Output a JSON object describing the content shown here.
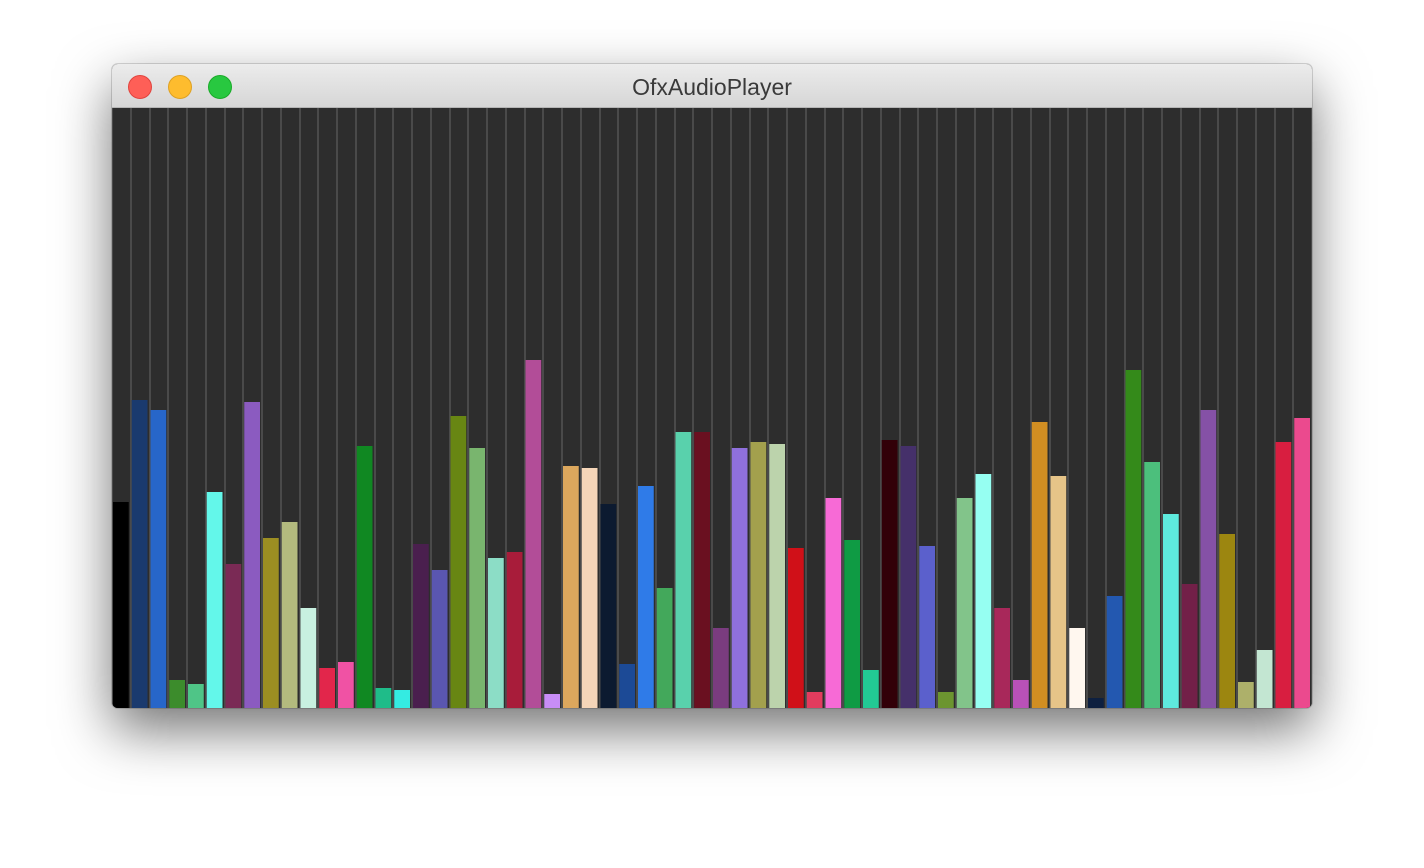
{
  "window": {
    "title": "OfxAudioPlayer"
  },
  "titlebar": {
    "close_icon": "close-icon",
    "minimize_icon": "minimize-icon",
    "zoom_icon": "zoom-icon",
    "colors": {
      "close": "#fe5f57",
      "minimize": "#febc2e",
      "zoom": "#28c840"
    }
  },
  "visualizer": {
    "background": "#2d2d2d",
    "grid_line_color": "#4a4a4a",
    "max_level": 600,
    "bars": [
      {
        "level": 206,
        "color": "#000000"
      },
      {
        "level": 308,
        "color": "#1a3a6e"
      },
      {
        "level": 298,
        "color": "#2766c9"
      },
      {
        "level": 28,
        "color": "#3c8c2c"
      },
      {
        "level": 24,
        "color": "#4fc587"
      },
      {
        "level": 216,
        "color": "#63f7ea"
      },
      {
        "level": 144,
        "color": "#7a2a55"
      },
      {
        "level": 306,
        "color": "#8b5bc0"
      },
      {
        "level": 170,
        "color": "#9c8e22"
      },
      {
        "level": 186,
        "color": "#b3ba7e"
      },
      {
        "level": 100,
        "color": "#c8f0e0"
      },
      {
        "level": 40,
        "color": "#e2264b"
      },
      {
        "level": 46,
        "color": "#f052a4"
      },
      {
        "level": 262,
        "color": "#108822"
      },
      {
        "level": 20,
        "color": "#1fbc89"
      },
      {
        "level": 18,
        "color": "#34ebe2"
      },
      {
        "level": 164,
        "color": "#4a1f4e"
      },
      {
        "level": 138,
        "color": "#5a56b0"
      },
      {
        "level": 292,
        "color": "#688613"
      },
      {
        "level": 260,
        "color": "#79b56e"
      },
      {
        "level": 150,
        "color": "#8cddc6"
      },
      {
        "level": 156,
        "color": "#a81c3a"
      },
      {
        "level": 348,
        "color": "#b24d98"
      },
      {
        "level": 14,
        "color": "#c88df6"
      },
      {
        "level": 242,
        "color": "#dca75d"
      },
      {
        "level": 240,
        "color": "#f5d5b8"
      },
      {
        "level": 204,
        "color": "#0c1a30"
      },
      {
        "level": 44,
        "color": "#1c4a96"
      },
      {
        "level": 222,
        "color": "#2f7be8"
      },
      {
        "level": 120,
        "color": "#43a85b"
      },
      {
        "level": 276,
        "color": "#59d1ac"
      },
      {
        "level": 276,
        "color": "#6a1020"
      },
      {
        "level": 80,
        "color": "#7a3c7f"
      },
      {
        "level": 260,
        "color": "#8f70dd"
      },
      {
        "level": 266,
        "color": "#a3a04d"
      },
      {
        "level": 264,
        "color": "#bcd3ac"
      },
      {
        "level": 160,
        "color": "#d01018"
      },
      {
        "level": 16,
        "color": "#e23c5e"
      },
      {
        "level": 210,
        "color": "#f76ad6"
      },
      {
        "level": 168,
        "color": "#0f9b44"
      },
      {
        "level": 38,
        "color": "#22c994"
      },
      {
        "level": 268,
        "color": "#320008"
      },
      {
        "level": 262,
        "color": "#45306a"
      },
      {
        "level": 162,
        "color": "#5b60cc"
      },
      {
        "level": 16,
        "color": "#6c9530"
      },
      {
        "level": 210,
        "color": "#82c48a"
      },
      {
        "level": 234,
        "color": "#96fff2"
      },
      {
        "level": 100,
        "color": "#a8285a"
      },
      {
        "level": 28,
        "color": "#b951b8"
      },
      {
        "level": 286,
        "color": "#d18e22"
      },
      {
        "level": 232,
        "color": "#e6c488"
      },
      {
        "level": 80,
        "color": "#fff7ef"
      },
      {
        "level": 10,
        "color": "#0e2040"
      },
      {
        "level": 112,
        "color": "#2358b0"
      },
      {
        "level": 338,
        "color": "#348a1a"
      },
      {
        "level": 246,
        "color": "#4cbf7c"
      },
      {
        "level": 194,
        "color": "#5eeadd"
      },
      {
        "level": 124,
        "color": "#722048"
      },
      {
        "level": 298,
        "color": "#8551a6"
      },
      {
        "level": 174,
        "color": "#9c8610"
      },
      {
        "level": 26,
        "color": "#adb06a"
      },
      {
        "level": 58,
        "color": "#c3e6d2"
      },
      {
        "level": 266,
        "color": "#d81e40"
      },
      {
        "level": 290,
        "color": "#eb4a8e"
      }
    ]
  }
}
